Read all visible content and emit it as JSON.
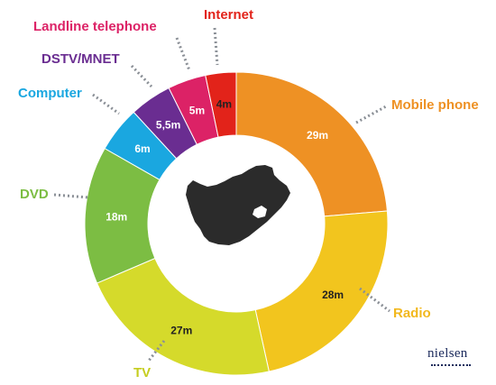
{
  "chart_data": {
    "type": "pie",
    "variant": "donut",
    "start_angle": "12 o'clock, clockwise",
    "categories": [
      "Mobile phone",
      "Radio",
      "TV",
      "DVD",
      "Computer",
      "DSTV/MNET",
      "Landline telephone",
      "Internet"
    ],
    "values": [
      29,
      28,
      27,
      18,
      6,
      5.5,
      5,
      4
    ],
    "value_labels": [
      "29m",
      "28m",
      "27m",
      "18m",
      "6m",
      "5,5m",
      "5m",
      "4m"
    ],
    "colors": [
      "#ee9124",
      "#f2c51e",
      "#d5da2b",
      "#7cbd43",
      "#1aa7e0",
      "#6a2d91",
      "#dc2266",
      "#e2231a"
    ],
    "center_image": "south-africa-map"
  },
  "branding": {
    "logo_text": "nielsen"
  }
}
